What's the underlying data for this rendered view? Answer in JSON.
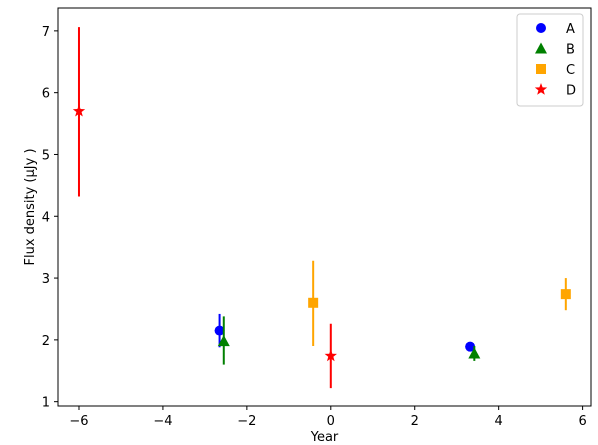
{
  "chart_data": {
    "type": "scatter",
    "xlabel": "Year",
    "ylabel": "Flux density (μJy )",
    "xlim": [
      -6.5,
      6.2
    ],
    "ylim": [
      0.93,
      7.37
    ],
    "xticks": [
      -6,
      -4,
      -2,
      0,
      2,
      4,
      6
    ],
    "yticks": [
      1,
      2,
      3,
      4,
      5,
      6,
      7
    ],
    "grid": false,
    "legend_position": "top-right",
    "series": [
      {
        "name": "A",
        "marker": "circle",
        "color": "#0000ff",
        "points": [
          {
            "x": -2.65,
            "y": 2.15,
            "err_low": 1.88,
            "err_high": 2.42
          },
          {
            "x": 3.32,
            "y": 1.89,
            "err_low": 1.84,
            "err_high": 1.95
          }
        ]
      },
      {
        "name": "B",
        "marker": "triangle",
        "color": "#008000",
        "points": [
          {
            "x": -2.55,
            "y": 1.98,
            "err_low": 1.6,
            "err_high": 2.38
          },
          {
            "x": 3.42,
            "y": 1.78,
            "err_low": 1.66,
            "err_high": 1.9
          }
        ]
      },
      {
        "name": "C",
        "marker": "square",
        "color": "#ffa500",
        "points": [
          {
            "x": -0.42,
            "y": 2.6,
            "err_low": 1.9,
            "err_high": 3.28
          },
          {
            "x": 5.6,
            "y": 2.74,
            "err_low": 2.48,
            "err_high": 3.0
          }
        ]
      },
      {
        "name": "D",
        "marker": "star",
        "color": "#ff0000",
        "points": [
          {
            "x": -6.0,
            "y": 5.7,
            "err_low": 4.32,
            "err_high": 7.06
          },
          {
            "x": 0.0,
            "y": 1.74,
            "err_low": 1.22,
            "err_high": 2.26
          }
        ]
      }
    ]
  }
}
